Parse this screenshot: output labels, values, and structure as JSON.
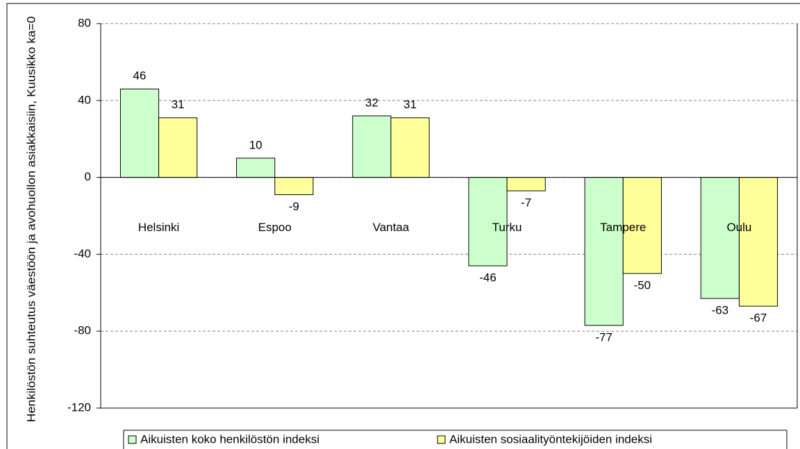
{
  "chart_data": {
    "type": "bar",
    "y_label": "Henkilöstön suhteutus väestöön ja avohuollon asiakkaisiin, Kuusikko ka=0",
    "categories": [
      "Helsinki",
      "Espoo",
      "Vantaa",
      "Turku",
      "Tampere",
      "Oulu"
    ],
    "series": [
      {
        "name": "Aikuisten koko henkilöstön indeksi",
        "color": "#ccffcc",
        "values": [
          46,
          10,
          32,
          -46,
          -77,
          -63
        ]
      },
      {
        "name": "Aikuisten sosiaalityöntekijöiden indeksi",
        "color": "#ffff99",
        "values": [
          31,
          -9,
          31,
          -7,
          -50,
          -67
        ]
      }
    ],
    "ylim": [
      -120,
      80
    ],
    "yticks": [
      -120,
      -80,
      -40,
      0,
      40,
      80
    ],
    "grid": true,
    "legend": "bottom"
  }
}
